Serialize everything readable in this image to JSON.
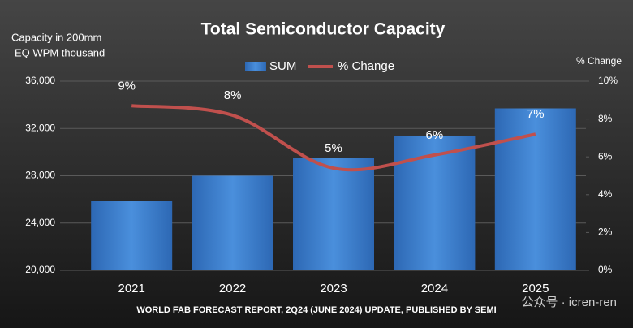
{
  "chart_data": {
    "type": "bar_line",
    "title": "Total Semiconductor Capacity",
    "y_label": [
      "Capacity in 200mm",
      "EQ WPM thousand"
    ],
    "y2_label": "% Change",
    "footer": "WORLD FAB FORECAST REPORT, 2Q24 (JUNE 2024) UPDATE, PUBLISHED BY SEMI",
    "watermark": "公众号 · icren-ren",
    "categories": [
      "2021",
      "2022",
      "2023",
      "2024",
      "2025"
    ],
    "series": [
      {
        "name": "SUM",
        "color": "#3f82d0",
        "values": [
          25900,
          28000,
          29500,
          31400,
          33700
        ]
      },
      {
        "name": "% Change",
        "color": "#c0504d",
        "axis": "y2",
        "values": [
          8.7,
          8.2,
          5.4,
          6.1,
          7.2
        ],
        "value_labels": [
          "9%",
          "8%",
          "5%",
          "6%",
          "7%"
        ]
      }
    ],
    "ylim": [
      20000,
      36000
    ],
    "yticks": [
      {
        "value": 20000,
        "label": "20,000"
      },
      {
        "value": 24000,
        "label": "24,000"
      },
      {
        "value": 28000,
        "label": "28,000"
      },
      {
        "value": 32000,
        "label": "32,000"
      },
      {
        "value": 36000,
        "label": "36,000"
      }
    ],
    "y2lim": [
      0,
      10
    ],
    "y2ticks": [
      {
        "value": 0,
        "label": "0%"
      },
      {
        "value": 2,
        "label": "2%"
      },
      {
        "value": 4,
        "label": "4%"
      },
      {
        "value": 6,
        "label": "6%"
      },
      {
        "value": 8,
        "label": "8%"
      },
      {
        "value": 10,
        "label": "10%"
      }
    ],
    "grid": true
  }
}
